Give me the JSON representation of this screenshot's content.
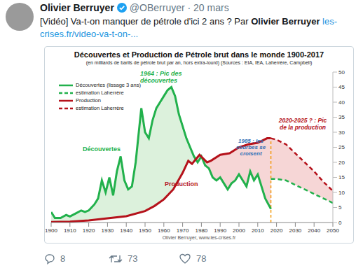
{
  "tweet": {
    "author": "Olivier Berruyer",
    "handle": "@OBerruyer",
    "date": "· 20 mars",
    "text": "[Vidéo] Va-t-on manquer de pétrole d'ici 2 ans ? Par",
    "text_author": "Olivier Berruyer",
    "link": "les-crises.fr/video-va-t-on-...",
    "replies": 8,
    "retweets": 73,
    "likes": 78
  },
  "chart_data": {
    "type": "line",
    "title": "Découvertes et Production de Pétrole brut dans le monde 1900-2017",
    "subtitle": "(en milliards de barils de pétrole brut par an, hors extra-lourd) (Sources : EIA, IEA, Laherrère, Campbell)",
    "annotations": [
      "1964 : Pic des découvertes",
      "1985 : les courbes se croisent",
      "2020-2025 ? : Pic de la production",
      "Découvertes",
      "Production"
    ],
    "footer": "Olivier Berruyer, www.les-crises.fr",
    "xlim": [
      1900,
      2050
    ],
    "xticks": [
      1900,
      1910,
      1920,
      1930,
      1940,
      1950,
      1960,
      1970,
      1980,
      1990,
      2000,
      2010,
      2020,
      2030,
      2040,
      2050
    ],
    "ylim": [
      0,
      50
    ],
    "yticks": [
      0,
      5,
      10,
      15,
      20,
      25,
      30,
      35,
      40,
      45,
      50
    ],
    "grid": false,
    "legend": "upper left",
    "series": [
      {
        "name": "Découvertes (lissage 3 ans)",
        "color": "#22b14c",
        "line_style": "solid",
        "x": [
          1900,
          1902,
          1905,
          1908,
          1910,
          1913,
          1916,
          1918,
          1920,
          1923,
          1925,
          1927,
          1929,
          1931,
          1933,
          1935,
          1937,
          1939,
          1941,
          1943,
          1945,
          1948,
          1950,
          1952,
          1954,
          1956,
          1958,
          1960,
          1962,
          1964,
          1966,
          1968,
          1970,
          1972,
          1974,
          1976,
          1978,
          1980,
          1982,
          1984,
          1986,
          1988,
          1990,
          1992,
          1994,
          1996,
          1998,
          2000,
          2002,
          2004,
          2006,
          2008,
          2010,
          2012,
          2014,
          2017
        ],
        "values": [
          3.5,
          1.5,
          1.5,
          2.5,
          2,
          3,
          4,
          3.5,
          4,
          6,
          8,
          14,
          10,
          15,
          9,
          17,
          22,
          14,
          11,
          12,
          20,
          38,
          30,
          28,
          34,
          38,
          40,
          42,
          44,
          45,
          42,
          36,
          32,
          28,
          25,
          22,
          20,
          22,
          19,
          18,
          15,
          14,
          15,
          13,
          11,
          13,
          14,
          16,
          14,
          12,
          17,
          14,
          16,
          12,
          8,
          4.5
        ]
      },
      {
        "name": "estimation Laherrère",
        "color": "#22b14c",
        "line_style": "dashed",
        "x": [
          2017,
          2020,
          2025,
          2030,
          2035,
          2040,
          2045,
          2050
        ],
        "values": [
          14.5,
          14.5,
          14,
          12.5,
          11,
          9.5,
          8,
          6.5
        ]
      },
      {
        "name": "Production",
        "color": "#b5121b",
        "line_style": "solid",
        "x": [
          1900,
          1910,
          1920,
          1930,
          1940,
          1950,
          1955,
          1960,
          1965,
          1970,
          1973,
          1975,
          1979,
          1983,
          1985,
          1990,
          1995,
          2000,
          2005,
          2010,
          2015,
          2017
        ],
        "values": [
          0.2,
          0.3,
          0.7,
          1.4,
          2.1,
          3.8,
          5.5,
          7.7,
          11,
          16.5,
          20.5,
          19.5,
          22.5,
          20,
          20.5,
          22.5,
          23,
          25,
          26,
          26.5,
          28,
          28
        ]
      },
      {
        "name": "estimation Laherrère",
        "color": "#b5121b",
        "line_style": "dashed",
        "x": [
          2017,
          2020,
          2025,
          2030,
          2035,
          2040,
          2045,
          2050
        ],
        "values": [
          28,
          27.5,
          26,
          23,
          20,
          17,
          13.5,
          10.5
        ]
      }
    ]
  }
}
